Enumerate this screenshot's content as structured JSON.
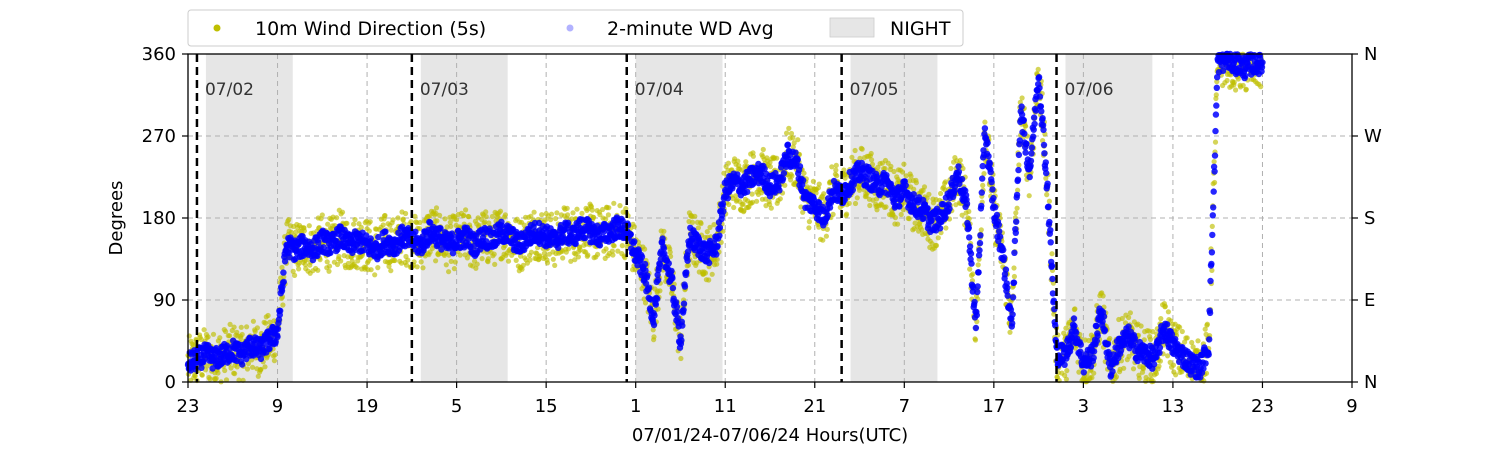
{
  "chart_data": {
    "type": "scatter",
    "xlabel": "07/01/24-07/06/24  Hours(UTC)",
    "ylabel": "Degrees",
    "x_range_hours": [
      0,
      130
    ],
    "ylim": [
      0,
      360
    ],
    "x_ticks": [
      {
        "hour": 0,
        "label": "23"
      },
      {
        "hour": 10,
        "label": "9"
      },
      {
        "hour": 20,
        "label": "19"
      },
      {
        "hour": 30,
        "label": "5"
      },
      {
        "hour": 40,
        "label": "15"
      },
      {
        "hour": 50,
        "label": "1"
      },
      {
        "hour": 60,
        "label": "11"
      },
      {
        "hour": 70,
        "label": "21"
      },
      {
        "hour": 80,
        "label": "7"
      },
      {
        "hour": 90,
        "label": "17"
      },
      {
        "hour": 100,
        "label": "3"
      },
      {
        "hour": 110,
        "label": "13"
      },
      {
        "hour": 120,
        "label": "23"
      },
      {
        "hour": 130,
        "label": "9"
      }
    ],
    "y_ticks": [
      0,
      90,
      180,
      270,
      360
    ],
    "y_tick_labels": [
      "0",
      "90",
      "180",
      "270",
      "360"
    ],
    "right_ticks": [
      "N",
      "E",
      "S",
      "W",
      "N"
    ],
    "grid": true,
    "legend_placement": "top",
    "legend": [
      {
        "label": "10m Wind Direction (5s)",
        "color": "#bfbf00",
        "marker": "dot"
      },
      {
        "label": "2-minute WD Avg",
        "color": "#0000ff",
        "marker": "dot-faint"
      },
      {
        "label": "NIGHT",
        "color": "#e6e6e6",
        "marker": "rect"
      }
    ],
    "day_markers": [
      {
        "hour": 1,
        "label": "07/02"
      },
      {
        "hour": 25,
        "label": "07/03"
      },
      {
        "hour": 49,
        "label": "07/04"
      },
      {
        "hour": 73,
        "label": "07/05"
      },
      {
        "hour": 97,
        "label": "07/06"
      }
    ],
    "night_periods": [
      [
        2,
        11.7
      ],
      [
        26,
        35.7
      ],
      [
        50,
        59.7
      ],
      [
        74,
        83.7
      ],
      [
        98,
        107.7
      ]
    ],
    "series": [
      {
        "name": "10m Wind Direction (5s)",
        "color": "#bfbf00",
        "spread_deg": 30,
        "x": [
          0,
          1,
          2,
          3,
          4,
          5,
          6,
          7,
          8,
          9,
          10,
          11,
          12,
          13,
          14,
          15,
          16,
          17,
          18,
          19,
          20,
          21,
          22,
          23,
          24,
          25,
          26,
          27,
          28,
          29,
          30,
          31,
          32,
          33,
          34,
          35,
          36,
          37,
          38,
          39,
          40,
          41,
          42,
          43,
          44,
          45,
          46,
          47,
          48,
          49,
          50,
          51,
          52,
          53,
          54,
          55,
          56,
          57,
          58,
          59,
          60,
          61,
          62,
          63,
          64,
          65,
          66,
          67,
          68,
          69,
          70,
          71,
          72,
          73,
          74,
          75,
          76,
          77,
          78,
          79,
          80,
          81,
          82,
          83,
          84,
          85,
          86,
          87,
          88,
          89,
          90,
          91,
          92,
          93,
          94,
          95,
          96,
          97,
          98,
          99,
          100,
          101,
          102,
          103,
          104,
          105,
          106,
          107,
          108,
          109,
          110,
          111,
          112,
          113,
          114,
          115,
          116,
          117,
          118,
          119,
          120
        ],
        "y": [
          20,
          25,
          30,
          25,
          30,
          35,
          30,
          40,
          35,
          45,
          55,
          150,
          145,
          150,
          145,
          155,
          150,
          160,
          150,
          155,
          150,
          145,
          155,
          150,
          160,
          155,
          150,
          165,
          160,
          150,
          155,
          160,
          150,
          160,
          155,
          165,
          160,
          150,
          160,
          165,
          160,
          155,
          165,
          160,
          170,
          165,
          160,
          165,
          170,
          165,
          140,
          120,
          70,
          150,
          110,
          45,
          160,
          150,
          140,
          150,
          210,
          220,
          215,
          225,
          230,
          215,
          220,
          250,
          240,
          200,
          195,
          180,
          210,
          205,
          220,
          230,
          225,
          215,
          220,
          200,
          210,
          195,
          190,
          175,
          180,
          200,
          230,
          190,
          60,
          280,
          190,
          140,
          60,
          300,
          230,
          340,
          210,
          30,
          30,
          60,
          20,
          30,
          80,
          15,
          40,
          50,
          35,
          30,
          25,
          60,
          40,
          30,
          20,
          15,
          40,
          350,
          355,
          350,
          345,
          350,
          350
        ]
      },
      {
        "name": "2-minute WD Avg",
        "color": "#0000ff",
        "spread_deg": 12,
        "x": [
          0,
          1,
          2,
          3,
          4,
          5,
          6,
          7,
          8,
          9,
          10,
          11,
          12,
          13,
          14,
          15,
          16,
          17,
          18,
          19,
          20,
          21,
          22,
          23,
          24,
          25,
          26,
          27,
          28,
          29,
          30,
          31,
          32,
          33,
          34,
          35,
          36,
          37,
          38,
          39,
          40,
          41,
          42,
          43,
          44,
          45,
          46,
          47,
          48,
          49,
          50,
          51,
          52,
          53,
          54,
          55,
          56,
          57,
          58,
          59,
          60,
          61,
          62,
          63,
          64,
          65,
          66,
          67,
          68,
          69,
          70,
          71,
          72,
          73,
          74,
          75,
          76,
          77,
          78,
          79,
          80,
          81,
          82,
          83,
          84,
          85,
          86,
          87,
          88,
          89,
          90,
          91,
          92,
          93,
          94,
          95,
          96,
          97,
          98,
          99,
          100,
          101,
          102,
          103,
          104,
          105,
          106,
          107,
          108,
          109,
          110,
          111,
          112,
          113,
          114,
          115,
          116,
          117,
          118,
          119,
          120
        ],
        "y": [
          20,
          25,
          30,
          25,
          30,
          35,
          30,
          40,
          35,
          45,
          55,
          150,
          145,
          150,
          145,
          155,
          150,
          160,
          150,
          155,
          150,
          145,
          155,
          150,
          160,
          155,
          150,
          165,
          160,
          150,
          155,
          160,
          150,
          160,
          155,
          165,
          160,
          150,
          160,
          165,
          160,
          155,
          165,
          160,
          170,
          165,
          160,
          165,
          170,
          165,
          140,
          120,
          70,
          150,
          110,
          45,
          160,
          150,
          140,
          150,
          210,
          220,
          215,
          225,
          230,
          215,
          220,
          250,
          240,
          200,
          195,
          180,
          210,
          205,
          220,
          230,
          225,
          215,
          220,
          200,
          210,
          195,
          190,
          175,
          180,
          200,
          230,
          190,
          60,
          280,
          190,
          140,
          60,
          300,
          230,
          340,
          210,
          30,
          30,
          60,
          20,
          30,
          80,
          15,
          40,
          50,
          35,
          30,
          25,
          60,
          40,
          30,
          20,
          15,
          40,
          350,
          355,
          350,
          345,
          350,
          350
        ]
      }
    ]
  }
}
